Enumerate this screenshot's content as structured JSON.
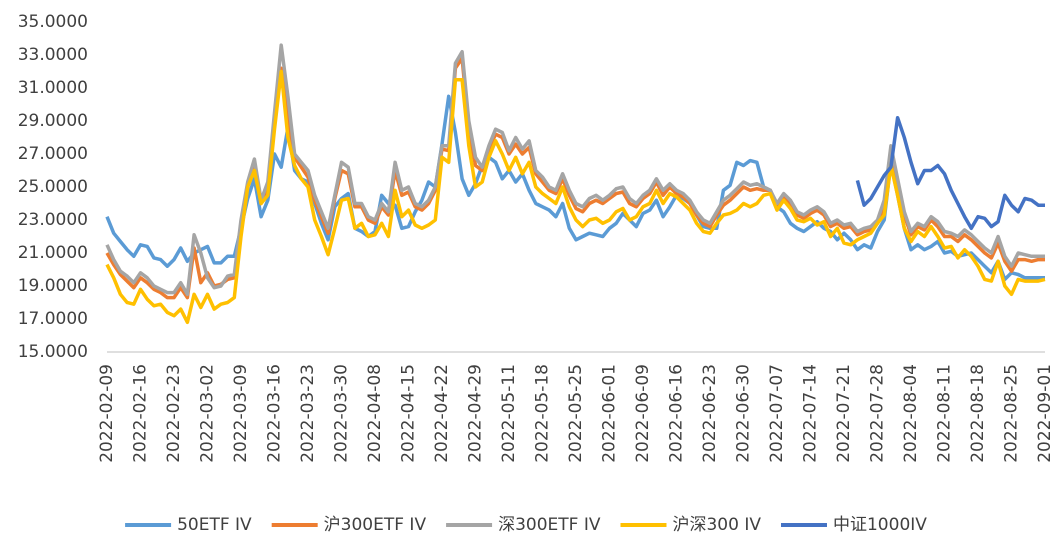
{
  "chart_data": {
    "type": "line",
    "grid": false,
    "legend": "bottom",
    "ylim": [
      15,
      35
    ],
    "yticks": [
      {
        "value": 15,
        "label": "15.0000"
      },
      {
        "value": 17,
        "label": "17.0000"
      },
      {
        "value": 19,
        "label": "19.0000"
      },
      {
        "value": 21,
        "label": "21.0000"
      },
      {
        "value": 23,
        "label": "23.0000"
      },
      {
        "value": 25,
        "label": "25.0000"
      },
      {
        "value": 27,
        "label": "27.0000"
      },
      {
        "value": 29,
        "label": "29.0000"
      },
      {
        "value": 31,
        "label": "31.0000"
      },
      {
        "value": 33,
        "label": "33.0000"
      },
      {
        "value": 35,
        "label": "35.0000"
      }
    ],
    "categories": [
      "2022-02-09",
      null,
      null,
      null,
      null,
      "2022-02-16",
      null,
      null,
      null,
      null,
      "2022-02-23",
      null,
      null,
      null,
      null,
      "2022-03-02",
      null,
      null,
      null,
      null,
      "2022-03-09",
      null,
      null,
      null,
      null,
      "2022-03-16",
      null,
      null,
      null,
      null,
      "2022-03-23",
      null,
      null,
      null,
      null,
      "2022-03-30",
      null,
      null,
      null,
      null,
      "2022-04-08",
      null,
      null,
      null,
      null,
      "2022-04-15",
      null,
      null,
      null,
      null,
      "2022-04-22",
      null,
      null,
      null,
      null,
      "2022-04-29",
      null,
      null,
      null,
      null,
      "2022-05-11",
      null,
      null,
      null,
      null,
      "2022-05-18",
      null,
      null,
      null,
      null,
      "2022-05-25",
      null,
      null,
      null,
      null,
      "2022-06-01",
      null,
      null,
      null,
      null,
      "2022-06-09",
      null,
      null,
      null,
      null,
      "2022-06-16",
      null,
      null,
      null,
      null,
      "2022-06-23",
      null,
      null,
      null,
      null,
      "2022-06-30",
      null,
      null,
      null,
      null,
      "2022-07-07",
      null,
      null,
      null,
      null,
      "2022-07-14",
      null,
      null,
      null,
      null,
      "2022-07-21",
      null,
      null,
      null,
      null,
      "2022-07-28",
      null,
      null,
      null,
      null,
      "2022-08-04",
      null,
      null,
      null,
      null,
      "2022-08-11",
      null,
      null,
      null,
      null,
      "2022-08-18",
      null,
      null,
      null,
      null,
      "2022-08-25",
      null,
      null,
      null,
      null,
      "2022-09-01"
    ],
    "series": [
      {
        "name": "50ETF IV",
        "color": "#5b9bd5",
        "values": [
          23.2,
          22.2,
          21.7,
          21.2,
          20.8,
          21.5,
          21.4,
          20.7,
          20.6,
          20.2,
          20.6,
          21.3,
          20.5,
          21.0,
          21.2,
          21.4,
          20.4,
          20.4,
          20.8,
          20.8,
          22.5,
          24.3,
          25.5,
          23.2,
          24.2,
          27.0,
          26.2,
          28.6,
          26.0,
          25.5,
          25.3,
          24.0,
          22.8,
          21.8,
          23.8,
          24.3,
          24.6,
          22.5,
          22.3,
          22.0,
          22.3,
          24.5,
          24.0,
          23.9,
          22.5,
          22.6,
          23.5,
          24.2,
          25.3,
          25.0,
          27.6,
          30.5,
          28.3,
          25.5,
          24.5,
          25.2,
          26.3,
          26.8,
          26.5,
          25.5,
          26.0,
          25.3,
          25.8,
          24.8,
          24.0,
          23.8,
          23.6,
          23.2,
          24.0,
          22.5,
          21.8,
          22.0,
          22.2,
          22.1,
          22.0,
          22.5,
          22.8,
          23.4,
          23.0,
          22.6,
          23.4,
          23.6,
          24.2,
          23.2,
          23.8,
          24.5,
          24.3,
          24.0,
          23.3,
          22.6,
          22.5,
          22.5,
          24.8,
          25.1,
          26.5,
          26.3,
          26.6,
          26.5,
          25.0,
          24.8,
          23.8,
          23.5,
          22.8,
          22.5,
          22.3,
          22.6,
          22.9,
          22.5,
          22.3,
          21.8,
          22.2,
          21.8,
          21.2,
          21.5,
          21.3,
          22.3,
          23.0,
          26.5,
          24.5,
          22.5,
          21.2,
          21.5,
          21.2,
          21.4,
          21.7,
          21.0,
          21.1,
          20.8,
          20.9,
          21.0,
          20.6,
          20.2,
          19.8,
          20.5,
          19.4,
          19.8,
          19.7,
          19.5,
          19.5,
          19.5,
          19.5
        ]
      },
      {
        "name": "沪300ETF IV",
        "color": "#ed7d31",
        "values": [
          21.0,
          20.3,
          19.7,
          19.3,
          18.9,
          19.5,
          19.2,
          18.8,
          18.6,
          18.3,
          18.3,
          18.9,
          18.3,
          21.3,
          19.2,
          19.8,
          19.0,
          19.1,
          19.4,
          19.5,
          22.8,
          25.0,
          26.3,
          24.0,
          25.0,
          29.0,
          32.2,
          29.5,
          26.8,
          26.2,
          25.6,
          24.2,
          23.2,
          22.2,
          24.3,
          26.0,
          25.8,
          23.8,
          23.8,
          23.0,
          22.8,
          23.8,
          23.3,
          26.0,
          24.5,
          24.7,
          23.8,
          23.6,
          24.0,
          24.8,
          27.3,
          27.2,
          32.2,
          32.8,
          28.5,
          26.3,
          26.0,
          27.3,
          28.2,
          28.0,
          27.0,
          27.6,
          27.0,
          27.4,
          25.8,
          25.3,
          24.8,
          24.6,
          25.5,
          24.5,
          23.7,
          23.5,
          24.0,
          24.2,
          24.0,
          24.3,
          24.6,
          24.7,
          24.0,
          23.8,
          24.3,
          24.6,
          25.3,
          24.5,
          25.0,
          24.6,
          24.4,
          24.0,
          23.3,
          22.8,
          22.6,
          23.3,
          23.9,
          24.2,
          24.6,
          25.0,
          24.8,
          24.9,
          24.8,
          24.8,
          23.8,
          24.4,
          24.0,
          23.3,
          23.1,
          23.4,
          23.6,
          23.3,
          22.6,
          22.8,
          22.5,
          22.6,
          22.1,
          22.3,
          22.4,
          22.8,
          23.9,
          27.2,
          25.2,
          23.3,
          22.1,
          22.6,
          22.4,
          23.0,
          22.6,
          22.0,
          22.0,
          21.7,
          22.1,
          21.8,
          21.4,
          21.0,
          20.7,
          21.6,
          20.5,
          19.9,
          20.6,
          20.6,
          20.5,
          20.6,
          20.6
        ]
      },
      {
        "name": "深300ETF IV",
        "color": "#a5a5a5",
        "values": [
          21.5,
          20.6,
          19.9,
          19.6,
          19.2,
          19.8,
          19.5,
          19.0,
          18.8,
          18.6,
          18.6,
          19.2,
          18.5,
          22.1,
          21.0,
          19.5,
          18.9,
          19.0,
          19.6,
          19.7,
          23.0,
          25.3,
          26.7,
          24.2,
          25.3,
          29.5,
          33.6,
          30.5,
          27.0,
          26.5,
          26.0,
          24.5,
          23.5,
          22.5,
          24.5,
          26.5,
          26.2,
          24.0,
          24.0,
          23.2,
          23.0,
          24.0,
          23.5,
          26.5,
          24.8,
          25.0,
          24.0,
          23.8,
          24.2,
          25.0,
          27.5,
          27.5,
          32.5,
          33.2,
          29.0,
          26.8,
          26.2,
          27.5,
          28.5,
          28.3,
          27.2,
          28.0,
          27.3,
          27.8,
          26.0,
          25.6,
          25.0,
          24.8,
          25.8,
          24.8,
          24.0,
          23.8,
          24.3,
          24.5,
          24.2,
          24.5,
          24.9,
          25.0,
          24.3,
          24.0,
          24.5,
          24.8,
          25.5,
          24.8,
          25.2,
          24.8,
          24.6,
          24.2,
          23.5,
          23.0,
          22.8,
          23.5,
          24.2,
          24.5,
          24.9,
          25.3,
          25.1,
          25.2,
          25.0,
          24.8,
          24.0,
          24.6,
          24.2,
          23.5,
          23.3,
          23.6,
          23.8,
          23.5,
          22.8,
          23.0,
          22.7,
          22.8,
          22.3,
          22.5,
          22.6,
          23.0,
          24.2,
          27.5,
          25.5,
          23.5,
          22.3,
          22.8,
          22.6,
          23.2,
          22.9,
          22.3,
          22.2,
          22.0,
          22.4,
          22.1,
          21.7,
          21.3,
          21.0,
          22.0,
          20.8,
          20.2,
          21.0,
          20.9,
          20.8,
          20.8,
          20.8
        ]
      },
      {
        "name": "沪深300 IV",
        "color": "#ffc000",
        "values": [
          20.3,
          19.5,
          18.5,
          18.0,
          17.9,
          18.8,
          18.2,
          17.8,
          17.9,
          17.4,
          17.2,
          17.6,
          16.8,
          18.5,
          17.7,
          18.5,
          17.6,
          17.9,
          18.0,
          18.3,
          22.0,
          25.0,
          26.0,
          24.0,
          24.5,
          28.5,
          32.0,
          28.0,
          26.3,
          25.5,
          25.0,
          23.0,
          22.0,
          20.9,
          22.5,
          24.2,
          24.3,
          22.5,
          22.8,
          22.0,
          22.1,
          22.8,
          22.0,
          24.8,
          23.2,
          23.6,
          22.7,
          22.5,
          22.7,
          23.0,
          26.8,
          26.5,
          31.5,
          31.5,
          27.5,
          25.0,
          25.3,
          26.8,
          27.8,
          27.0,
          26.0,
          26.8,
          25.8,
          26.5,
          25.0,
          24.6,
          24.3,
          24.0,
          25.0,
          23.8,
          23.0,
          22.6,
          23.0,
          23.1,
          22.8,
          23.0,
          23.5,
          23.7,
          23.0,
          23.2,
          23.8,
          24.0,
          24.8,
          24.0,
          24.6,
          24.4,
          24.0,
          23.6,
          22.8,
          22.3,
          22.2,
          22.8,
          23.3,
          23.4,
          23.6,
          24.0,
          23.8,
          24.0,
          24.5,
          24.6,
          23.6,
          24.2,
          23.7,
          23.0,
          22.9,
          23.1,
          22.7,
          22.9,
          22.0,
          22.5,
          21.6,
          21.5,
          21.8,
          22.0,
          22.2,
          22.8,
          23.3,
          26.3,
          24.5,
          22.5,
          21.7,
          22.3,
          22.0,
          22.6,
          22.0,
          21.3,
          21.4,
          20.7,
          21.2,
          20.8,
          20.2,
          19.4,
          19.3,
          20.5,
          19.0,
          18.5,
          19.4,
          19.3,
          19.3,
          19.3,
          19.4
        ]
      },
      {
        "name": "中证1000IV",
        "color": "#4472c4",
        "values": [
          null,
          null,
          null,
          null,
          null,
          null,
          null,
          null,
          null,
          null,
          null,
          null,
          null,
          null,
          null,
          null,
          null,
          null,
          null,
          null,
          null,
          null,
          null,
          null,
          null,
          null,
          null,
          null,
          null,
          null,
          null,
          null,
          null,
          null,
          null,
          null,
          null,
          null,
          null,
          null,
          null,
          null,
          null,
          null,
          null,
          null,
          null,
          null,
          null,
          null,
          null,
          null,
          null,
          null,
          null,
          null,
          null,
          null,
          null,
          null,
          null,
          null,
          null,
          null,
          null,
          null,
          null,
          null,
          null,
          null,
          null,
          null,
          null,
          null,
          null,
          null,
          null,
          null,
          null,
          null,
          null,
          null,
          null,
          null,
          null,
          null,
          null,
          null,
          null,
          null,
          null,
          null,
          null,
          null,
          null,
          null,
          null,
          null,
          null,
          null,
          null,
          null,
          null,
          null,
          null,
          null,
          null,
          null,
          null,
          null,
          null,
          null,
          25.4,
          23.9,
          24.3,
          25.0,
          25.7,
          26.2,
          29.2,
          28.0,
          26.5,
          25.2,
          26.0,
          26.0,
          26.3,
          25.8,
          24.8,
          24.0,
          23.2,
          22.5,
          23.2,
          23.1,
          22.6,
          22.9,
          24.5,
          23.9,
          23.5,
          24.3,
          24.2,
          23.9,
          23.9
        ]
      }
    ]
  }
}
